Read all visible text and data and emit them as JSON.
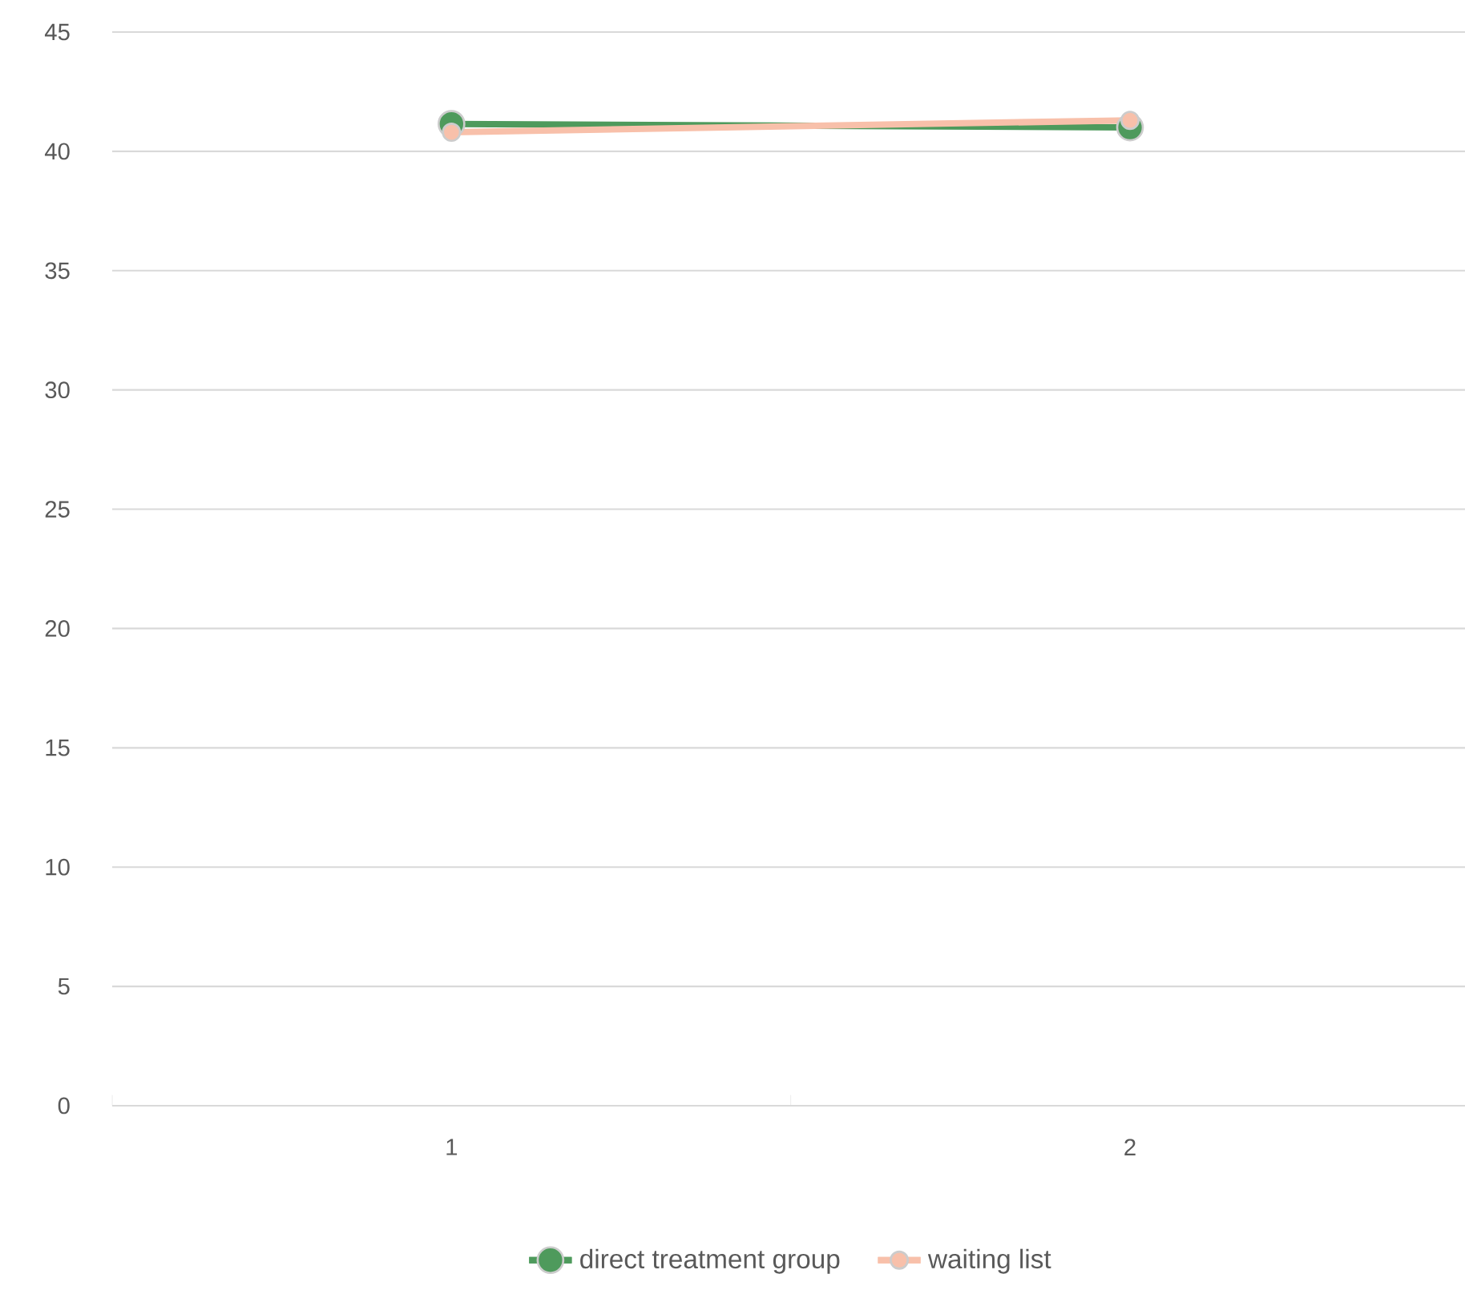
{
  "chart_data": {
    "type": "line",
    "categories": [
      "1",
      "2"
    ],
    "series": [
      {
        "name": "direct treatment group",
        "color": "#4e9a5c",
        "values": [
          41.15,
          41.0
        ]
      },
      {
        "name": "waiting list",
        "color": "#f8c0aa",
        "values": [
          40.8,
          41.3
        ]
      }
    ],
    "ylim": [
      0,
      45
    ],
    "yticks": [
      0,
      5,
      10,
      15,
      20,
      25,
      30,
      35,
      40,
      45
    ],
    "grid": "y",
    "legend": "bottom",
    "marker": "circle",
    "line_style": "solid"
  }
}
